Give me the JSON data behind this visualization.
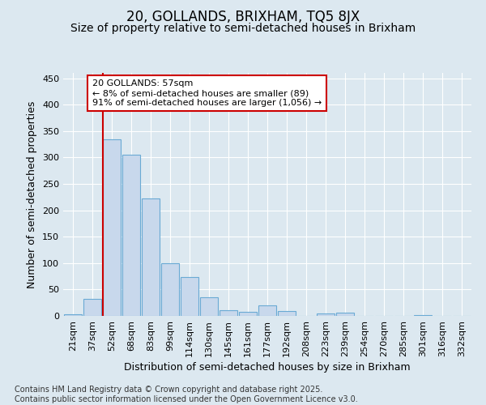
{
  "title1": "20, GOLLANDS, BRIXHAM, TQ5 8JX",
  "title2": "Size of property relative to semi-detached houses in Brixham",
  "xlabel": "Distribution of semi-detached houses by size in Brixham",
  "ylabel": "Number of semi-detached properties",
  "footnote": "Contains HM Land Registry data © Crown copyright and database right 2025.\nContains public sector information licensed under the Open Government Licence v3.0.",
  "bar_labels": [
    "21sqm",
    "37sqm",
    "52sqm",
    "68sqm",
    "83sqm",
    "99sqm",
    "114sqm",
    "130sqm",
    "145sqm",
    "161sqm",
    "177sqm",
    "192sqm",
    "208sqm",
    "223sqm",
    "239sqm",
    "254sqm",
    "270sqm",
    "285sqm",
    "301sqm",
    "316sqm",
    "332sqm"
  ],
  "bar_values": [
    3,
    32,
    335,
    305,
    222,
    100,
    73,
    36,
    10,
    8,
    20,
    9,
    0,
    5,
    6,
    0,
    0,
    0,
    1,
    0,
    0
  ],
  "bar_color": "#c8d8ec",
  "bar_edge_color": "#6aaad4",
  "marker_index": 2,
  "marker_color": "#cc0000",
  "annotation_line1": "20 GOLLANDS: 57sqm",
  "annotation_line2": "← 8% of semi-detached houses are smaller (89)",
  "annotation_line3": "91% of semi-detached houses are larger (1,056) →",
  "annotation_box_color": "#ffffff",
  "annotation_box_edge": "#cc0000",
  "ylim": [
    0,
    460
  ],
  "yticks": [
    0,
    50,
    100,
    150,
    200,
    250,
    300,
    350,
    400,
    450
  ],
  "bg_color": "#dce8f0",
  "plot_bg_color": "#dce8f0",
  "title1_fontsize": 12,
  "title2_fontsize": 10,
  "axis_label_fontsize": 9,
  "tick_fontsize": 8,
  "footnote_fontsize": 7
}
